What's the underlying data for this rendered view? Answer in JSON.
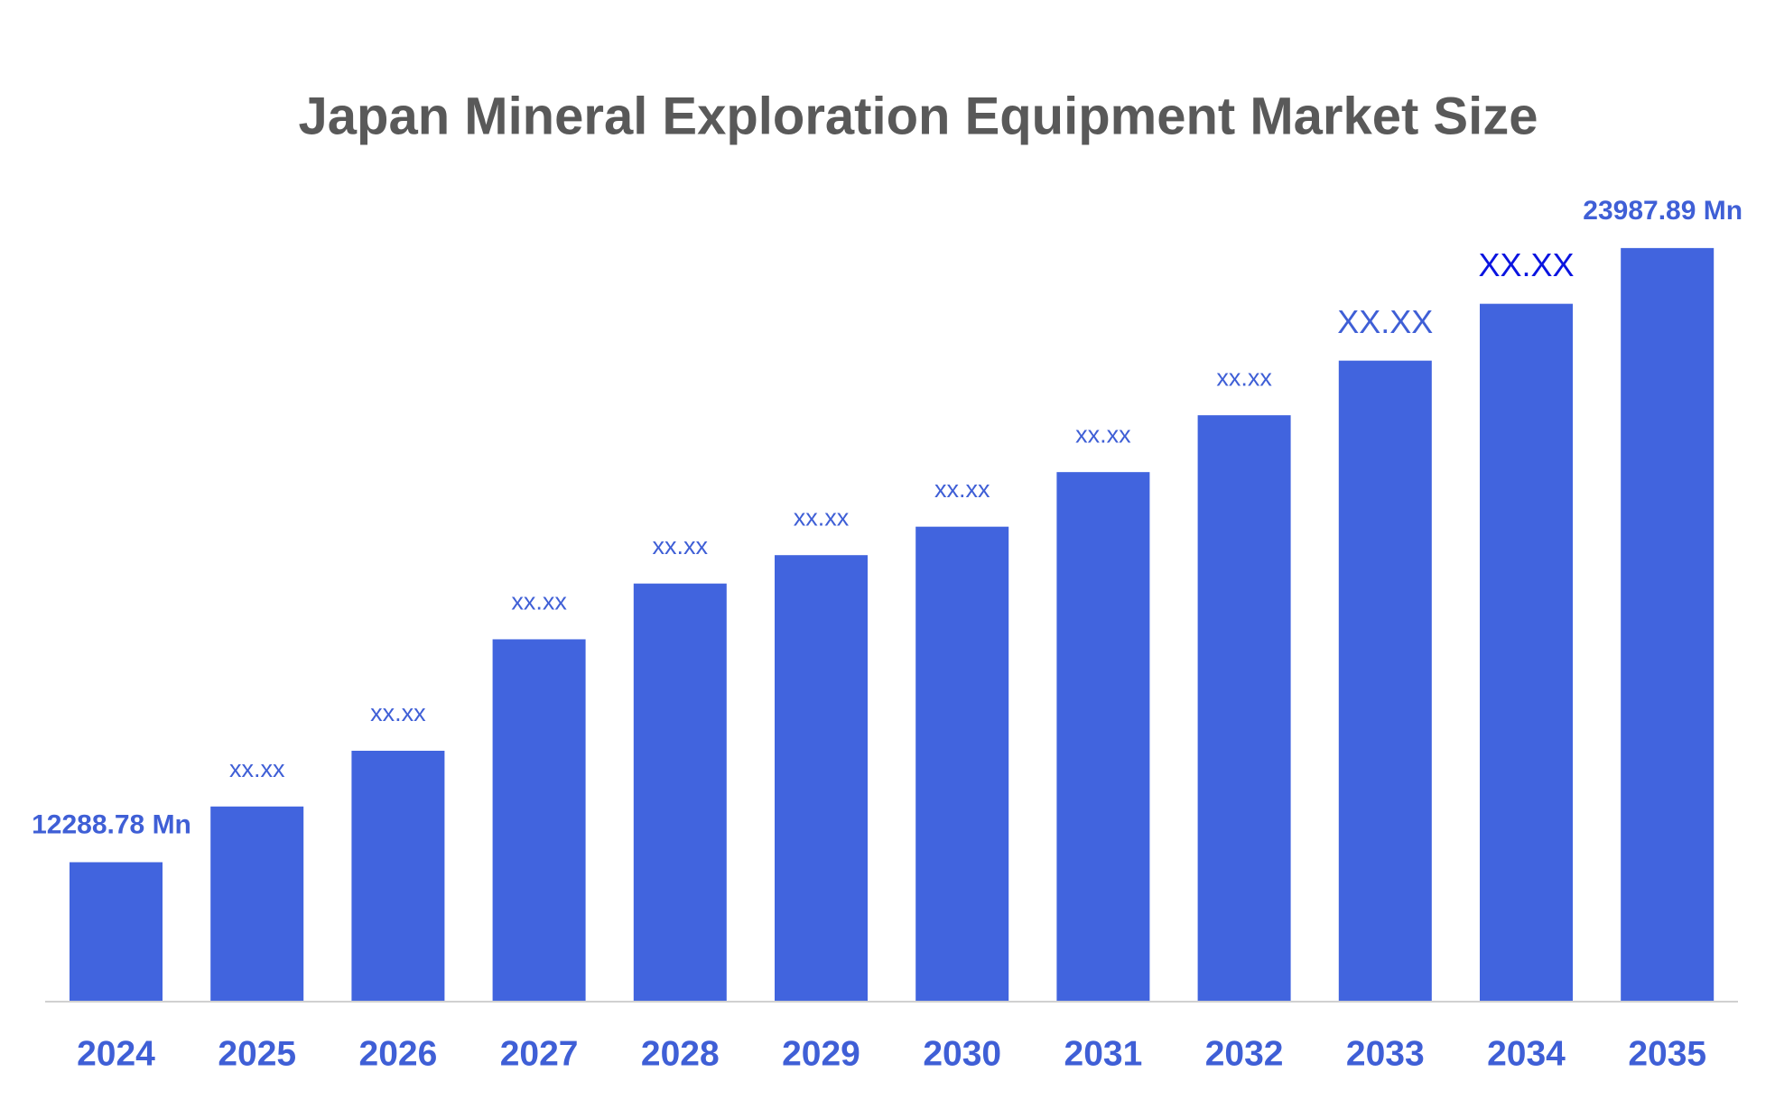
{
  "chart_data": {
    "type": "bar",
    "title": "Japan Mineral Exploration Equipment Market Size",
    "categories": [
      "2024",
      "2025",
      "2026",
      "2027",
      "2028",
      "2029",
      "2030",
      "2031",
      "2032",
      "2033",
      "2034",
      "2035"
    ],
    "values": [
      12288.78,
      13350,
      14412,
      16535,
      17597,
      18138,
      18680,
      19720,
      20803,
      21843,
      22926,
      23987.89
    ],
    "value_labels": [
      "12288.78 Mn",
      "xx.xx",
      "xx.xx",
      "xx.xx",
      "xx.xx",
      "xx.xx",
      "xx.xx",
      "xx.xx",
      "xx.xx",
      "XX.XX",
      "XX.XX",
      "23987.89 Mn"
    ],
    "color": "#4164de",
    "ylim": [
      9650,
      25000
    ]
  }
}
